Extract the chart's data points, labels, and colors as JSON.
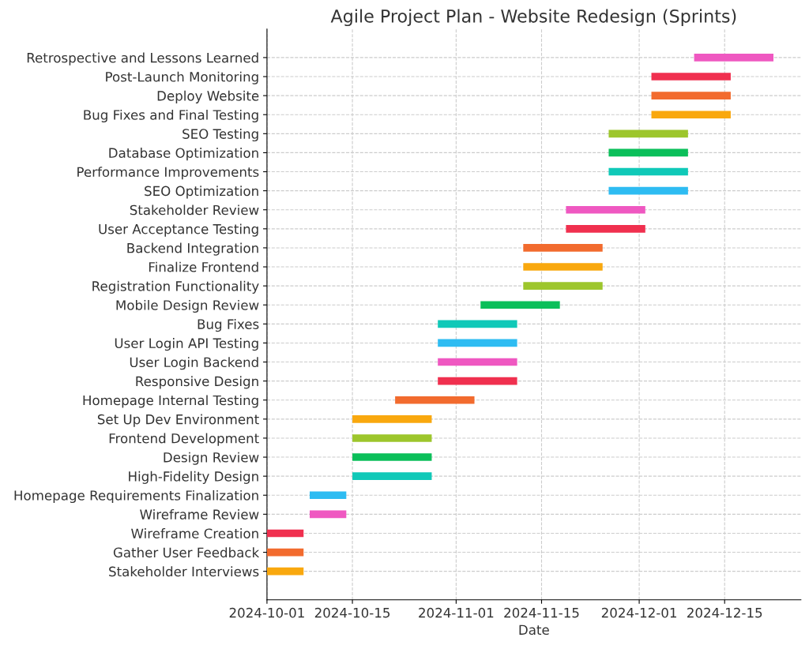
{
  "chart_data": {
    "type": "bar",
    "orientation": "horizontal",
    "title": "Agile Project Plan - Website Redesign (Sprints)",
    "xlabel": "Date",
    "categories": [
      "Retrospective and Lessons Learned",
      "Post-Launch Monitoring",
      "Deploy Website",
      "Bug Fixes and Final Testing",
      "SEO Testing",
      "Database Optimization",
      "Performance Improvements",
      "SEO Optimization",
      "Stakeholder Review",
      "User Acceptance Testing",
      "Backend Integration",
      "Finalize Frontend",
      "Registration Functionality",
      "Mobile Design Review",
      "Bug Fixes",
      "User Login API Testing",
      "User Login Backend",
      "Responsive Design",
      "Homepage Internal Testing",
      "Set Up Dev Environment",
      "Frontend Development",
      "Design Review",
      "High-Fidelity Design",
      "Homepage Requirements Finalization",
      "Wireframe Review",
      "Wireframe Creation",
      "Gather User Feedback",
      "Stakeholder Interviews"
    ],
    "base": [
      20067,
      20060,
      20060,
      20060,
      20053,
      20053,
      20053,
      20053,
      20046,
      20046,
      20039,
      20039,
      20039,
      20032,
      20025,
      20025,
      20025,
      20025,
      20018,
      20011,
      20011,
      20011,
      20011,
      20004,
      20004,
      19997,
      19997,
      19997
    ],
    "values": [
      13,
      13,
      13,
      13,
      13,
      13,
      13,
      13,
      13,
      13,
      13,
      13,
      13,
      13,
      13,
      13,
      13,
      13,
      13,
      13,
      13,
      13,
      13,
      6,
      6,
      6,
      6,
      6
    ],
    "colors": [
      "#ef58c1",
      "#f0304f",
      "#f26b2e",
      "#f9a80e",
      "#9dc62c",
      "#0bbf5a",
      "#10c9b8",
      "#2ebcf2",
      "#ef58c1",
      "#f0304f",
      "#f26b2e",
      "#f9a80e",
      "#9dc62c",
      "#0bbf5a",
      "#10c9b8",
      "#2ebcf2",
      "#ef58c1",
      "#f0304f",
      "#f26b2e",
      "#f9a80e",
      "#9dc62c",
      "#0bbf5a",
      "#10c9b8",
      "#2ebcf2",
      "#ef58c1",
      "#f0304f",
      "#f26b2e",
      "#f9a80e"
    ],
    "xlim": [
      "2024-10-01",
      "2024-12-27T12:00"
    ],
    "xticks": [
      "2024-10-01",
      "2024-10-15",
      "2024-11-01",
      "2024-11-15",
      "2024-12-01",
      "2024-12-15"
    ],
    "grid": true
  }
}
